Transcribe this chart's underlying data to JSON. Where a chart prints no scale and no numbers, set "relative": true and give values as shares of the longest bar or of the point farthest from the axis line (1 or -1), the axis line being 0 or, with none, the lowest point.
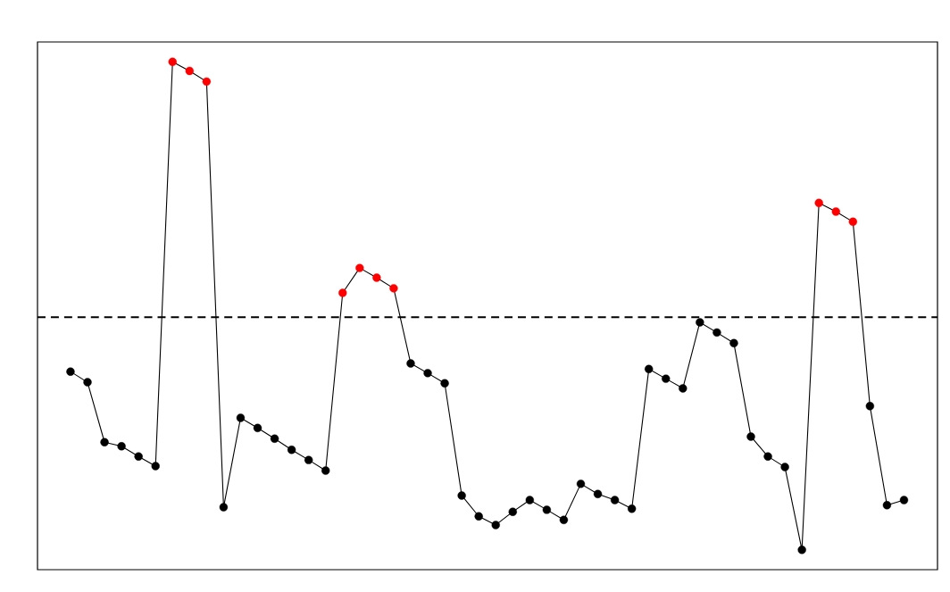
{
  "chart_data": {
    "type": "line",
    "relative": true,
    "marker": "circle",
    "line_style": "solid",
    "categories": [
      null,
      null,
      null,
      null,
      null,
      null,
      null,
      null,
      null,
      null,
      null,
      null,
      null,
      null,
      null,
      null,
      null,
      null,
      null,
      null,
      null,
      null,
      null,
      null,
      null,
      null,
      null,
      null,
      null,
      null,
      null,
      null,
      null,
      null,
      null,
      null,
      null,
      null,
      null,
      null,
      null,
      null,
      null,
      null,
      null,
      null,
      null,
      null,
      null,
      null
    ],
    "series": [
      {
        "color": "#000000",
        "values": [
          0.39,
          0.369,
          0.251,
          0.243,
          0.223,
          0.204,
          1.0,
          0.982,
          0.961,
          0.123,
          0.299,
          0.279,
          0.258,
          0.236,
          0.216,
          0.195,
          0.545,
          0.594,
          0.575,
          0.554,
          0.406,
          0.387,
          0.367,
          0.146,
          0.105,
          0.088,
          0.114,
          0.137,
          0.118,
          0.098,
          0.169,
          0.149,
          0.137,
          0.12,
          0.395,
          0.376,
          0.357,
          0.487,
          0.467,
          0.446,
          0.262,
          0.223,
          0.202,
          0.039,
          0.722,
          0.705,
          0.685,
          0.322,
          0.127,
          0.137
        ],
        "colors": [
          "#000000",
          "#000000",
          "#000000",
          "#000000",
          "#000000",
          "#000000",
          "#ff0000",
          "#ff0000",
          "#ff0000",
          "#000000",
          "#000000",
          "#000000",
          "#000000",
          "#000000",
          "#000000",
          "#000000",
          "#ff0000",
          "#ff0000",
          "#ff0000",
          "#ff0000",
          "#000000",
          "#000000",
          "#000000",
          "#000000",
          "#000000",
          "#000000",
          "#000000",
          "#000000",
          "#000000",
          "#000000",
          "#000000",
          "#000000",
          "#000000",
          "#000000",
          "#000000",
          "#000000",
          "#000000",
          "#000000",
          "#000000",
          "#000000",
          "#000000",
          "#000000",
          "#000000",
          "#000000",
          "#ff0000",
          "#ff0000",
          "#ff0000",
          "#000000",
          "#000000",
          "#000000"
        ]
      }
    ],
    "ref_lines": [
      {
        "axis": "y",
        "value": 0.497,
        "line_style": "dashed",
        "color": "#000000"
      }
    ]
  }
}
